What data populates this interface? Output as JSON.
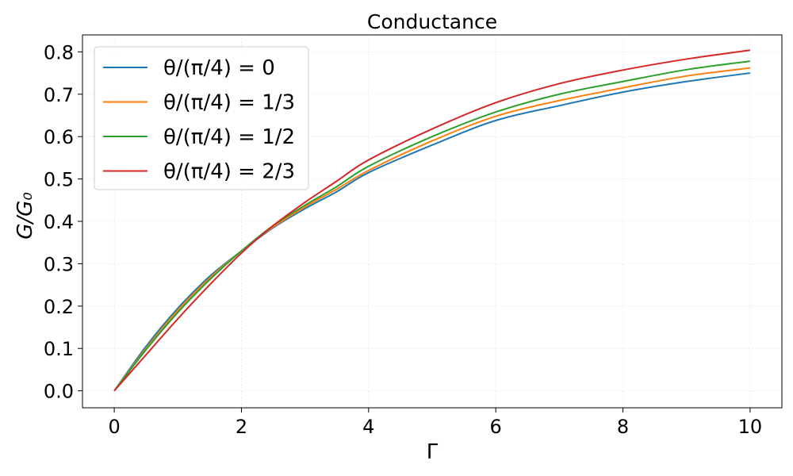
{
  "chart_data": {
    "type": "line",
    "title": "Conductance",
    "xlabel": "Γ",
    "ylabel": "G/G₀",
    "xlim": [
      -0.5,
      10.5
    ],
    "ylim": [
      -0.04,
      0.84
    ],
    "xticks": [
      0,
      2,
      4,
      6,
      8,
      10
    ],
    "xtick_labels": [
      "0",
      "2",
      "4",
      "6",
      "8",
      "10"
    ],
    "yticks": [
      0.0,
      0.1,
      0.2,
      0.3,
      0.4,
      0.5,
      0.6,
      0.7,
      0.8
    ],
    "ytick_labels": [
      "0.0",
      "0.1",
      "0.2",
      "0.3",
      "0.4",
      "0.5",
      "0.6",
      "0.7",
      "0.8"
    ],
    "grid": true,
    "legend_position": "upper-left",
    "x": [
      0,
      0.5,
      1,
      1.5,
      2,
      2.5,
      3,
      3.5,
      4,
      5,
      6,
      7,
      8,
      9,
      10
    ],
    "series": [
      {
        "name": "θ/(π/4) = 0",
        "color": "#1f77b4",
        "values": [
          0.0,
          0.105,
          0.195,
          0.27,
          0.33,
          0.385,
          0.43,
          0.47,
          0.515,
          0.58,
          0.638,
          0.673,
          0.705,
          0.73,
          0.75
        ]
      },
      {
        "name": "θ/(π/4) = 1/3",
        "color": "#ff7f0e",
        "values": [
          0.0,
          0.1,
          0.19,
          0.266,
          0.33,
          0.387,
          0.434,
          0.476,
          0.52,
          0.59,
          0.648,
          0.685,
          0.715,
          0.743,
          0.762
        ]
      },
      {
        "name": "θ/(π/4) = 1/2",
        "color": "#2ca02c",
        "values": [
          0.0,
          0.097,
          0.185,
          0.262,
          0.33,
          0.39,
          0.438,
          0.482,
          0.53,
          0.6,
          0.658,
          0.7,
          0.73,
          0.758,
          0.778
        ]
      },
      {
        "name": "θ/(π/4) = 2/3",
        "color": "#d62728",
        "values": [
          0.0,
          0.085,
          0.17,
          0.25,
          0.325,
          0.39,
          0.445,
          0.495,
          0.545,
          0.618,
          0.68,
          0.725,
          0.757,
          0.783,
          0.804
        ]
      }
    ]
  }
}
